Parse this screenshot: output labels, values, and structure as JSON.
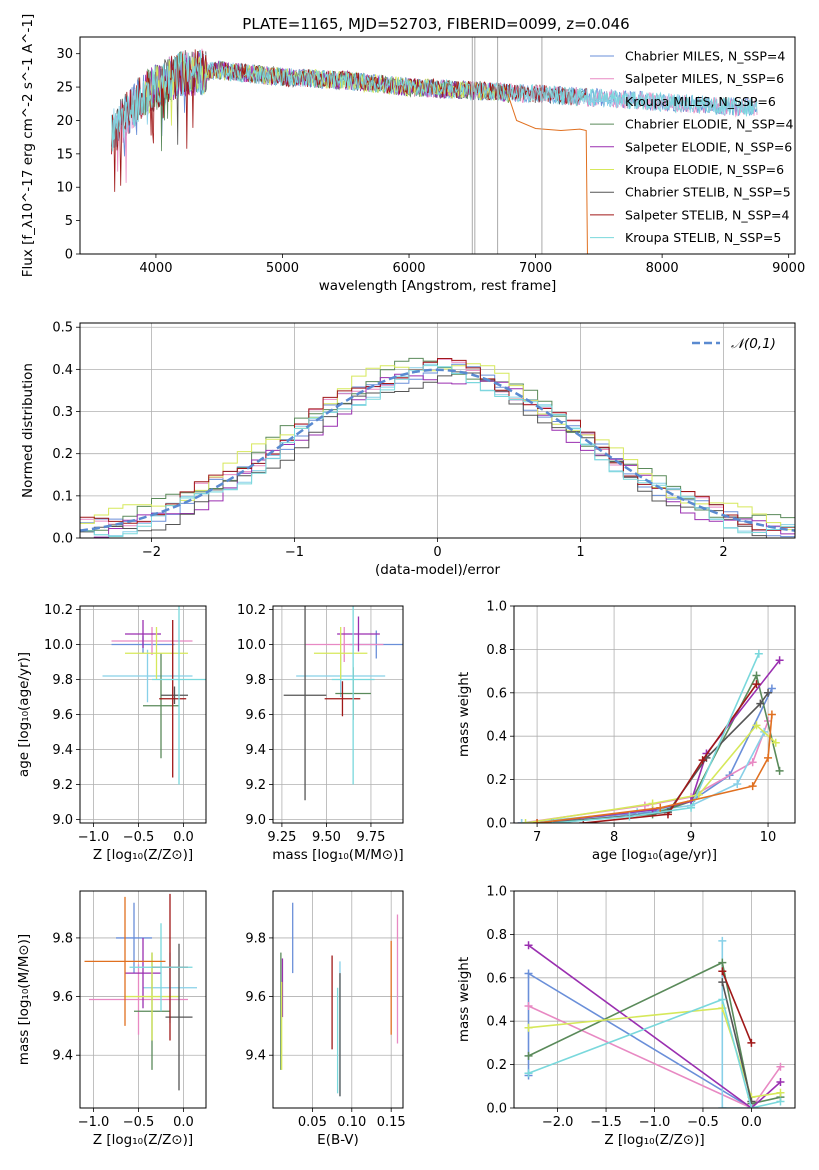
{
  "figure_title": "PLATE=1165, MJD=52703, FIBERID=0099, z=0.046",
  "series_colors": [
    "#6a8fd9",
    "#e889c3",
    "#88d0e8",
    "#5a8a5a",
    "#9a2fb0",
    "#d6e85a",
    "#555555",
    "#a01818",
    "#7ad8dc"
  ],
  "extra_colors": {
    "orange": "#e07020",
    "gaussian": "#5a8ad0"
  },
  "chart_data": [
    {
      "type": "line",
      "title": "PLATE=1165, MJD=52703, FIBERID=0099, z=0.046",
      "xlabel": "wavelength [Angstrom, rest frame]",
      "ylabel": "Flux [f_λ10^-17 erg cm^-2 s^-1 A^-1]",
      "xlim": [
        3400,
        9050
      ],
      "ylim": [
        0,
        32.5
      ],
      "xticks": [
        4000,
        5000,
        6000,
        7000,
        8000,
        9000
      ],
      "yticks": [
        0,
        5,
        10,
        15,
        20,
        25,
        30
      ],
      "legend_position": "top-right",
      "series": [
        {
          "name": "Chabrier MILES, N_SSP=4",
          "x": [
            3650,
            3900,
            4200,
            4500,
            5000,
            5500,
            6000,
            6500,
            7000,
            7400,
            7800,
            8200,
            8600,
            8750
          ],
          "y": [
            18,
            24,
            27,
            27.5,
            26.5,
            26,
            25,
            24.5,
            24,
            23.5,
            23,
            22.5,
            22,
            22
          ]
        },
        {
          "name": "Salpeter MILES, N_SSP=6",
          "x": [
            3650,
            3900,
            4200,
            4500,
            5000,
            5500,
            6000,
            6500,
            7000,
            7400,
            7800,
            8200,
            8600,
            8750
          ],
          "y": [
            18,
            24,
            27,
            27.5,
            26.5,
            26,
            25,
            24.5,
            24,
            23.5,
            23,
            22.5,
            22,
            22
          ]
        },
        {
          "name": "Kroupa MILES, N_SSP=6",
          "x": [
            3650,
            3900,
            4200,
            4500,
            5000,
            5500,
            6000,
            6500,
            7000,
            7400,
            7800,
            8200,
            8600,
            8750
          ],
          "y": [
            18,
            24,
            27,
            27.5,
            26.5,
            26,
            25,
            24.5,
            24,
            23.5,
            23,
            22.5,
            22,
            22
          ]
        },
        {
          "name": "Chabrier ELODIE, N_SSP=4",
          "x": [
            3900,
            4200,
            4500,
            5000,
            5500,
            6000,
            6500,
            6800
          ],
          "y": [
            24,
            27,
            27.5,
            26.5,
            26,
            25,
            24.5,
            24
          ]
        },
        {
          "name": "Salpeter ELODIE, N_SSP=6",
          "x": [
            3900,
            4200,
            4500,
            5000,
            5500,
            6000,
            6500,
            6800
          ],
          "y": [
            24,
            27,
            27.5,
            26.5,
            26,
            25,
            24.5,
            24
          ]
        },
        {
          "name": "Kroupa ELODIE, N_SSP=6",
          "x": [
            3900,
            4200,
            4500,
            5000,
            5500,
            6000,
            6500,
            6800
          ],
          "y": [
            24,
            27,
            27.5,
            26.5,
            26,
            25,
            24.5,
            24
          ]
        },
        {
          "name": "Chabrier STELIB, N_SSP=5",
          "x": [
            3650,
            3900,
            4200,
            4500,
            5000,
            5500,
            6000,
            6500,
            7000,
            7400
          ],
          "y": [
            18,
            24,
            27,
            27.5,
            26.5,
            26,
            25,
            24.5,
            24,
            23.5
          ]
        },
        {
          "name": "Salpeter STELIB, N_SSP=4",
          "x": [
            3650,
            3900,
            4200,
            4500,
            5000,
            5500,
            6000,
            6500,
            7000,
            7400
          ],
          "y": [
            18,
            24,
            27,
            27.5,
            26.5,
            26,
            25,
            24.5,
            24,
            23.5
          ]
        },
        {
          "name": "Kroupa STELIB, N_SSP=5",
          "x": [
            3650,
            3900,
            4200,
            4500,
            5000,
            5500,
            6000,
            6500,
            7000,
            7400,
            7800,
            8200,
            8600,
            8750
          ],
          "y": [
            18,
            24,
            27,
            27.5,
            26.5,
            26,
            25,
            24.5,
            24,
            23.5,
            23,
            22.5,
            22,
            22
          ]
        }
      ]
    },
    {
      "type": "line",
      "xlabel": "(data-model)/error",
      "ylabel": "Normed distribution",
      "xlim": [
        -2.5,
        2.5
      ],
      "ylim": [
        0,
        0.51
      ],
      "xticks": [
        -2,
        -1,
        0,
        1,
        2
      ],
      "yticks": [
        0.0,
        0.1,
        0.2,
        0.3,
        0.4,
        0.5
      ],
      "grid": true,
      "legend_position": "top-right",
      "legend": "𝒩(0,1)",
      "bin_width": 0.1,
      "series_offsets": [
        0.0,
        0.01,
        -0.01,
        0.02,
        -0.02,
        0.03,
        -0.03,
        0.015,
        -0.015
      ]
    },
    {
      "type": "scatter",
      "xlabel": "Z [log₁₀(Z/Z⊙)]",
      "ylabel": "age [log₁₀(age/yr)]",
      "xlim": [
        -1.15,
        0.25
      ],
      "ylim": [
        8.98,
        10.22
      ],
      "xticks": [
        -1.0,
        -0.5,
        0.0
      ],
      "yticks": [
        9.0,
        9.2,
        9.4,
        9.6,
        9.8,
        10.0,
        10.2
      ],
      "grid": true,
      "points": [
        {
          "x": -0.45,
          "y": 10.0,
          "xerr": 0.35,
          "yerr": 0.05
        },
        {
          "x": -0.35,
          "y": 10.02,
          "xerr": 0.45,
          "yerr": 0.08
        },
        {
          "x": -0.4,
          "y": 9.82,
          "xerr": 0.5,
          "yerr": 0.15
        },
        {
          "x": -0.25,
          "y": 9.65,
          "xerr": 0.2,
          "yerr": 0.3
        },
        {
          "x": -0.45,
          "y": 10.06,
          "xerr": 0.2,
          "yerr": 0.08
        },
        {
          "x": -0.3,
          "y": 9.95,
          "xerr": 0.35,
          "yerr": 0.15
        },
        {
          "x": -0.1,
          "y": 9.71,
          "xerr": 0.15,
          "yerr": 0.05
        },
        {
          "x": -0.12,
          "y": 9.69,
          "xerr": 0.15,
          "yerr": 0.45
        },
        {
          "x": -0.05,
          "y": 9.8,
          "xerr": 0.3,
          "yerr": 0.6
        }
      ]
    },
    {
      "type": "scatter",
      "xlabel": "mass [log₁₀(M/M⊙)]",
      "ylabel": "",
      "xlim": [
        9.2,
        9.93
      ],
      "ylim": [
        8.98,
        10.22
      ],
      "xticks": [
        9.25,
        9.5,
        9.75
      ],
      "yticks": [
        9.0,
        9.2,
        9.4,
        9.6,
        9.8,
        10.0,
        10.2
      ],
      "grid": true,
      "points": [
        {
          "x": 9.78,
          "y": 10.0,
          "xerr": 0.15,
          "yerr": 0.08
        },
        {
          "x": 9.6,
          "y": 10.0,
          "xerr": 0.22,
          "yerr": 0.1
        },
        {
          "x": 9.58,
          "y": 9.82,
          "xerr": 0.25,
          "yerr": 0.12
        },
        {
          "x": 9.65,
          "y": 9.72,
          "xerr": 0.1,
          "yerr": 0.15
        },
        {
          "x": 9.68,
          "y": 10.06,
          "xerr": 0.12,
          "yerr": 0.1
        },
        {
          "x": 9.58,
          "y": 9.95,
          "xerr": 0.15,
          "yerr": 0.15
        },
        {
          "x": 9.38,
          "y": 9.71,
          "xerr": 0.12,
          "yerr": 0.6
        },
        {
          "x": 9.59,
          "y": 9.69,
          "xerr": 0.1,
          "yerr": 0.1
        },
        {
          "x": 9.65,
          "y": 9.8,
          "xerr": 0.12,
          "yerr": 0.6
        }
      ]
    },
    {
      "type": "line",
      "xlabel": "age [log₁₀(age/yr)]",
      "ylabel": "mass weight",
      "xlim": [
        6.7,
        10.35
      ],
      "ylim": [
        0,
        1.0
      ],
      "xticks": [
        7,
        8,
        9,
        10
      ],
      "yticks": [
        0.0,
        0.2,
        0.4,
        0.6,
        0.8,
        1.0
      ],
      "grid": true,
      "series": [
        {
          "x": [
            6.8,
            8.5,
            9.0,
            9.5,
            10.05
          ],
          "y": [
            0.0,
            0.05,
            0.1,
            0.22,
            0.62
          ]
        },
        {
          "x": [
            6.8,
            8.4,
            9.0,
            9.8,
            10.0
          ],
          "y": [
            0.0,
            0.08,
            0.12,
            0.28,
            0.47
          ]
        },
        {
          "x": [
            6.8,
            8.3,
            9.0,
            9.6,
            9.95
          ],
          "y": [
            0.0,
            0.05,
            0.08,
            0.18,
            0.42
          ]
        },
        {
          "x": [
            7.0,
            8.5,
            9.0,
            9.85,
            10.15
          ],
          "y": [
            0.0,
            0.04,
            0.1,
            0.68,
            0.24
          ]
        },
        {
          "x": [
            7.0,
            8.5,
            9.0,
            9.2,
            10.15
          ],
          "y": [
            0.0,
            0.06,
            0.1,
            0.32,
            0.75
          ]
        },
        {
          "x": [
            6.85,
            8.5,
            9.1,
            9.85,
            10.1
          ],
          "y": [
            0.0,
            0.09,
            0.13,
            0.45,
            0.37
          ]
        },
        {
          "x": [
            7.2,
            8.7,
            9.2,
            9.9,
            10.0
          ],
          "y": [
            0.0,
            0.05,
            0.3,
            0.55,
            0.6
          ]
        },
        {
          "x": [
            7.6,
            8.7,
            9.15,
            9.85
          ],
          "y": [
            0.0,
            0.04,
            0.29,
            0.64
          ]
        },
        {
          "x": [
            7.2,
            8.2,
            9.0,
            9.88
          ],
          "y": [
            0.0,
            0.03,
            0.07,
            0.78
          ]
        },
        {
          "x": [
            7.0,
            8.6,
            9.8,
            10.0,
            10.05
          ],
          "y": [
            0.0,
            0.07,
            0.17,
            0.3,
            0.5
          ]
        }
      ]
    },
    {
      "type": "scatter",
      "xlabel": "Z [log₁₀(Z/Z⊙)]",
      "ylabel": "mass [log₁₀(M/M⊙)]",
      "xlim": [
        -1.15,
        0.25
      ],
      "ylim": [
        9.22,
        9.96
      ],
      "xticks": [
        -1.0,
        -0.5,
        0.0
      ],
      "yticks": [
        9.4,
        9.6,
        9.8
      ],
      "grid": true,
      "points": [
        {
          "x": -0.55,
          "y": 9.8,
          "xerr": 0.2,
          "yerr": 0.12
        },
        {
          "x": -0.5,
          "y": 9.59,
          "xerr": 0.55,
          "yerr": 0.12
        },
        {
          "x": -0.15,
          "y": 9.63,
          "xerr": 0.3,
          "yerr": 0.12
        },
        {
          "x": -0.35,
          "y": 9.55,
          "xerr": 0.2,
          "yerr": 0.2
        },
        {
          "x": -0.45,
          "y": 9.68,
          "xerr": 0.2,
          "yerr": 0.12
        },
        {
          "x": -0.35,
          "y": 9.6,
          "xerr": 0.3,
          "yerr": 0.15
        },
        {
          "x": -0.05,
          "y": 9.53,
          "xerr": 0.15,
          "yerr": 0.25
        },
        {
          "x": -0.15,
          "y": 9.7,
          "xerr": 0.2,
          "yerr": 0.25
        },
        {
          "x": -0.25,
          "y": 9.7,
          "xerr": 0.35,
          "yerr": 0.15
        },
        {
          "x": -0.65,
          "y": 9.72,
          "xerr": 0.45,
          "yerr": 0.22
        }
      ]
    },
    {
      "type": "scatter",
      "xlabel": "E(B-V)",
      "ylabel": "",
      "xlim": [
        0.0,
        0.165
      ],
      "ylim": [
        9.22,
        9.96
      ],
      "xticks": [
        0.05,
        0.1,
        0.15
      ],
      "yticks": [
        9.4,
        9.6,
        9.8
      ],
      "grid": true,
      "points": [
        {
          "x": 0.025,
          "y": 9.8,
          "yerr": 0.12
        },
        {
          "x": 0.158,
          "y": 9.66,
          "yerr": 0.22
        },
        {
          "x": 0.085,
          "y": 9.49,
          "yerr": 0.23
        },
        {
          "x": 0.01,
          "y": 9.55,
          "yerr": 0.2
        },
        {
          "x": 0.012,
          "y": 9.63,
          "yerr": 0.1
        },
        {
          "x": 0.011,
          "y": 9.5,
          "yerr": 0.15
        },
        {
          "x": 0.085,
          "y": 9.47,
          "yerr": 0.21
        },
        {
          "x": 0.075,
          "y": 9.58,
          "yerr": 0.16
        },
        {
          "x": 0.082,
          "y": 9.45,
          "yerr": 0.18
        },
        {
          "x": 0.15,
          "y": 9.63,
          "yerr": 0.16
        }
      ]
    },
    {
      "type": "line",
      "xlabel": "Z [log₁₀(Z/Z⊙)]",
      "ylabel": "mass weight",
      "xlim": [
        -2.45,
        0.45
      ],
      "ylim": [
        0,
        1.0
      ],
      "xticks": [
        -2.0,
        -1.5,
        -1.0,
        -0.5,
        0.0
      ],
      "yticks": [
        0.0,
        0.2,
        0.4,
        0.6,
        0.8,
        1.0
      ],
      "grid": true,
      "series": [
        {
          "x": [
            -2.3,
            -2.3,
            0.0
          ],
          "y": [
            0.15,
            0.62,
            0.0
          ]
        },
        {
          "x": [
            -2.3,
            0.0,
            0.3
          ],
          "y": [
            0.47,
            0.0,
            0.19
          ]
        },
        {
          "x": [
            -0.3,
            -0.3,
            0.0
          ],
          "y": [
            0.77,
            0.0,
            0.0
          ]
        },
        {
          "x": [
            -2.3,
            -0.3,
            0.0,
            0.3
          ],
          "y": [
            0.24,
            0.67,
            0.02,
            0.05
          ]
        },
        {
          "x": [
            -2.3,
            0.0,
            0.3
          ],
          "y": [
            0.75,
            0.0,
            0.12
          ]
        },
        {
          "x": [
            -2.3,
            -0.3,
            0.0,
            0.3
          ],
          "y": [
            0.37,
            0.46,
            0.05,
            0.07
          ]
        },
        {
          "x": [
            -0.3,
            0.0
          ],
          "y": [
            0.58,
            0.03
          ]
        },
        {
          "x": [
            -0.3,
            0.0
          ],
          "y": [
            0.63,
            0.3
          ]
        },
        {
          "x": [
            -2.3,
            -0.3,
            0.0,
            0.3
          ],
          "y": [
            0.16,
            0.5,
            0.0,
            0.03
          ]
        }
      ]
    }
  ]
}
